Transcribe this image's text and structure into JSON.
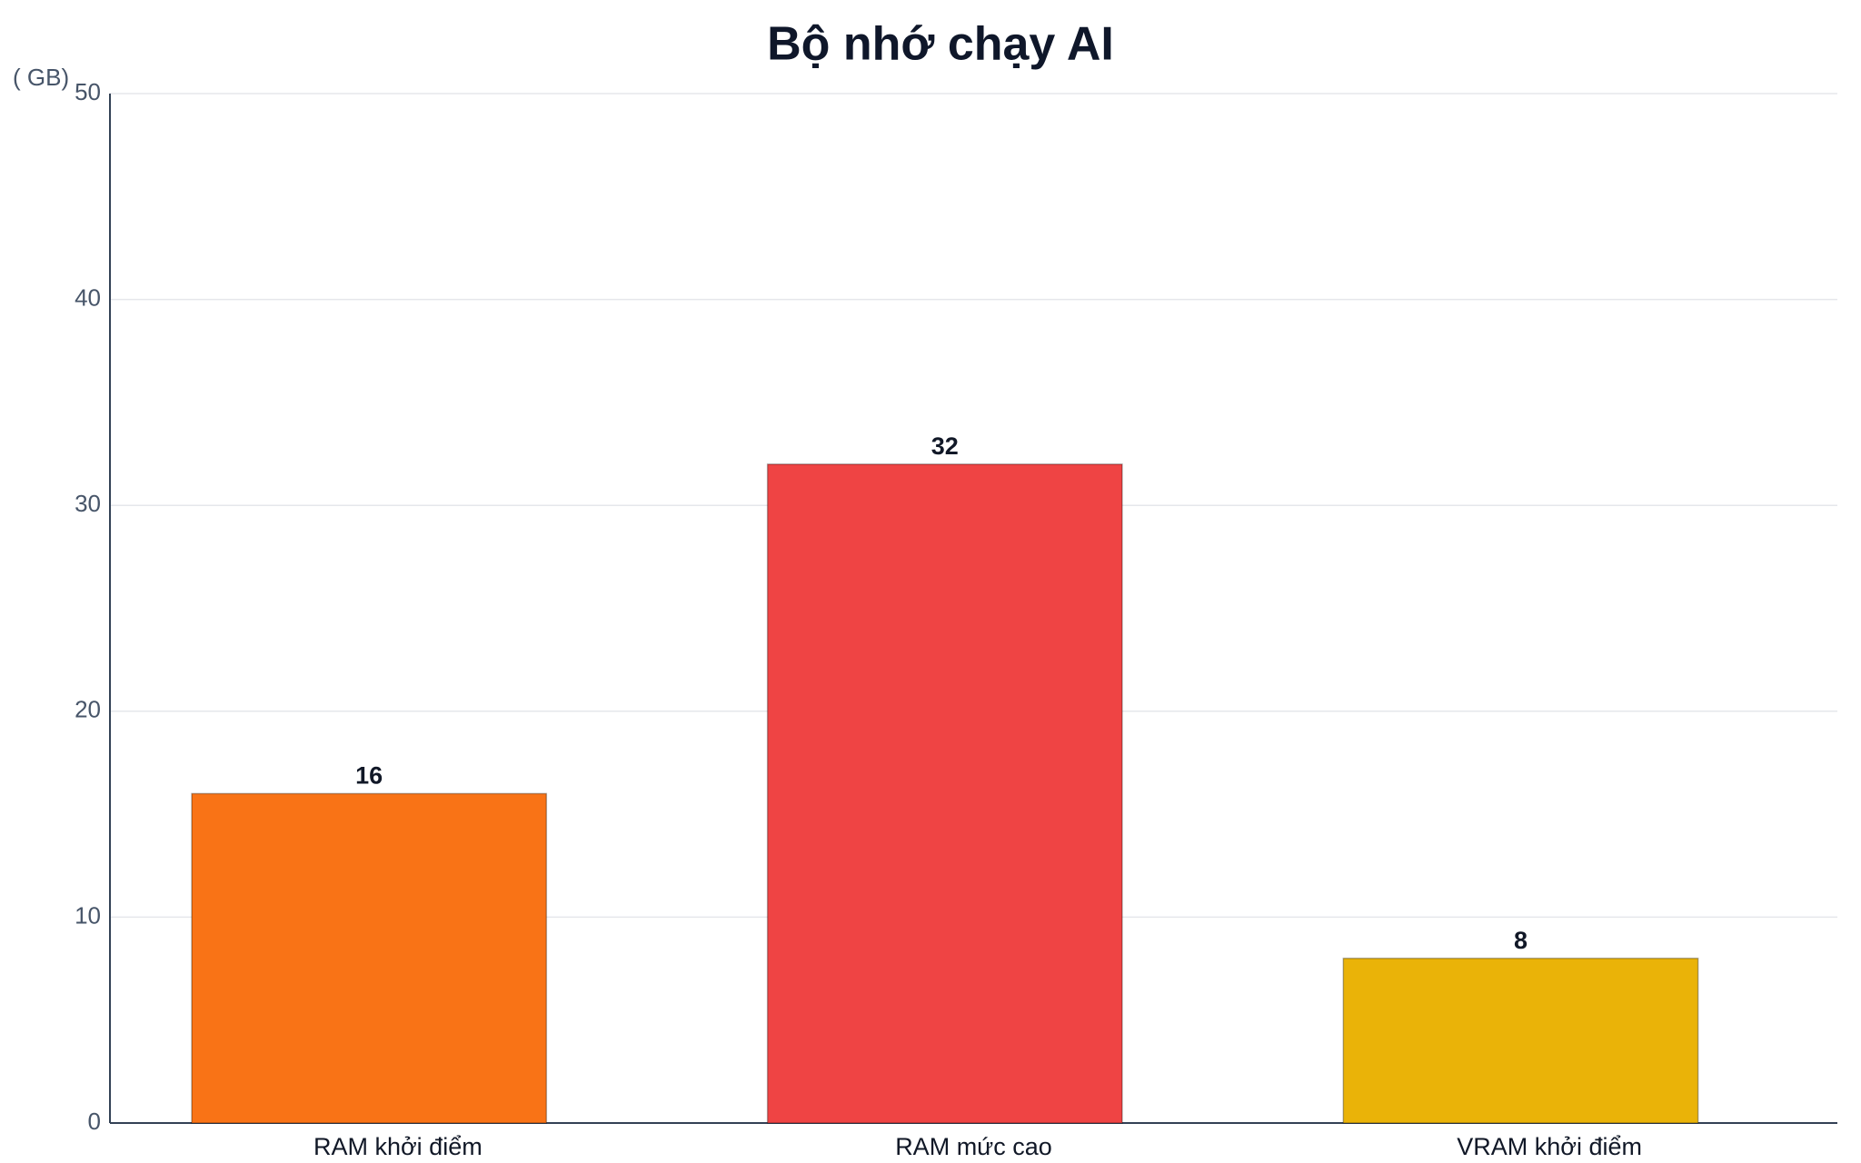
{
  "chart_data": {
    "type": "bar",
    "title": "Bộ nhớ chạy AI",
    "y_label": "( GB)",
    "categories": [
      "RAM khởi điểm",
      "RAM mức cao",
      "VRAM khởi điểm"
    ],
    "values": [
      16,
      32,
      8
    ],
    "colors": [
      "#f97316",
      "#ef4444",
      "#eab308"
    ],
    "ylim": [
      0,
      50
    ],
    "yticks": [
      0,
      10,
      20,
      30,
      40,
      50
    ],
    "grid": true
  }
}
